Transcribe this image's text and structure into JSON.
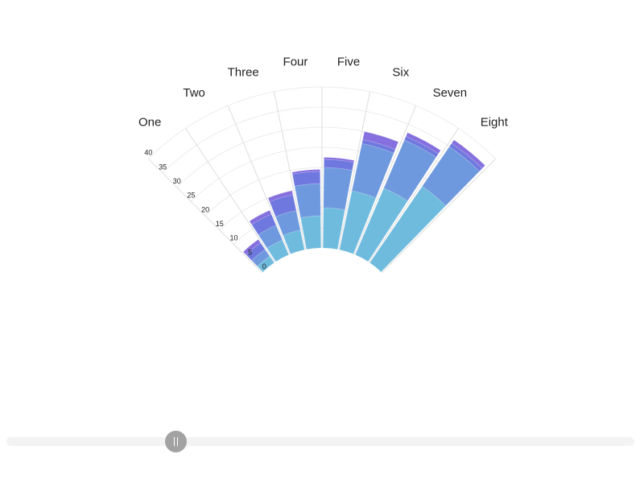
{
  "chart_data": {
    "type": "radial-stacked-column",
    "categories": [
      "One",
      "Two",
      "Three",
      "Four",
      "Five",
      "Six",
      "Seven",
      "Eight"
    ],
    "series": [
      {
        "color": "#67b7dc",
        "values": [
          2,
          4,
          5,
          8,
          10,
          15,
          18,
          23
        ]
      },
      {
        "color": "#6794dc",
        "values": [
          2,
          4,
          5,
          8,
          10,
          12,
          13,
          12
        ]
      },
      {
        "color": "#6771dc",
        "values": [
          2,
          3,
          4,
          3,
          2,
          1,
          1,
          1
        ]
      },
      {
        "color": "#8067dc",
        "values": [
          1,
          1,
          1,
          0.5,
          0.5,
          2,
          1,
          1
        ]
      }
    ],
    "y_ticks": [
      "0",
      "5",
      "10",
      "15",
      "20",
      "25",
      "30",
      "35",
      "40"
    ],
    "ylim": [
      0,
      40
    ],
    "grid": true
  },
  "slider": {
    "value": 0.27
  }
}
